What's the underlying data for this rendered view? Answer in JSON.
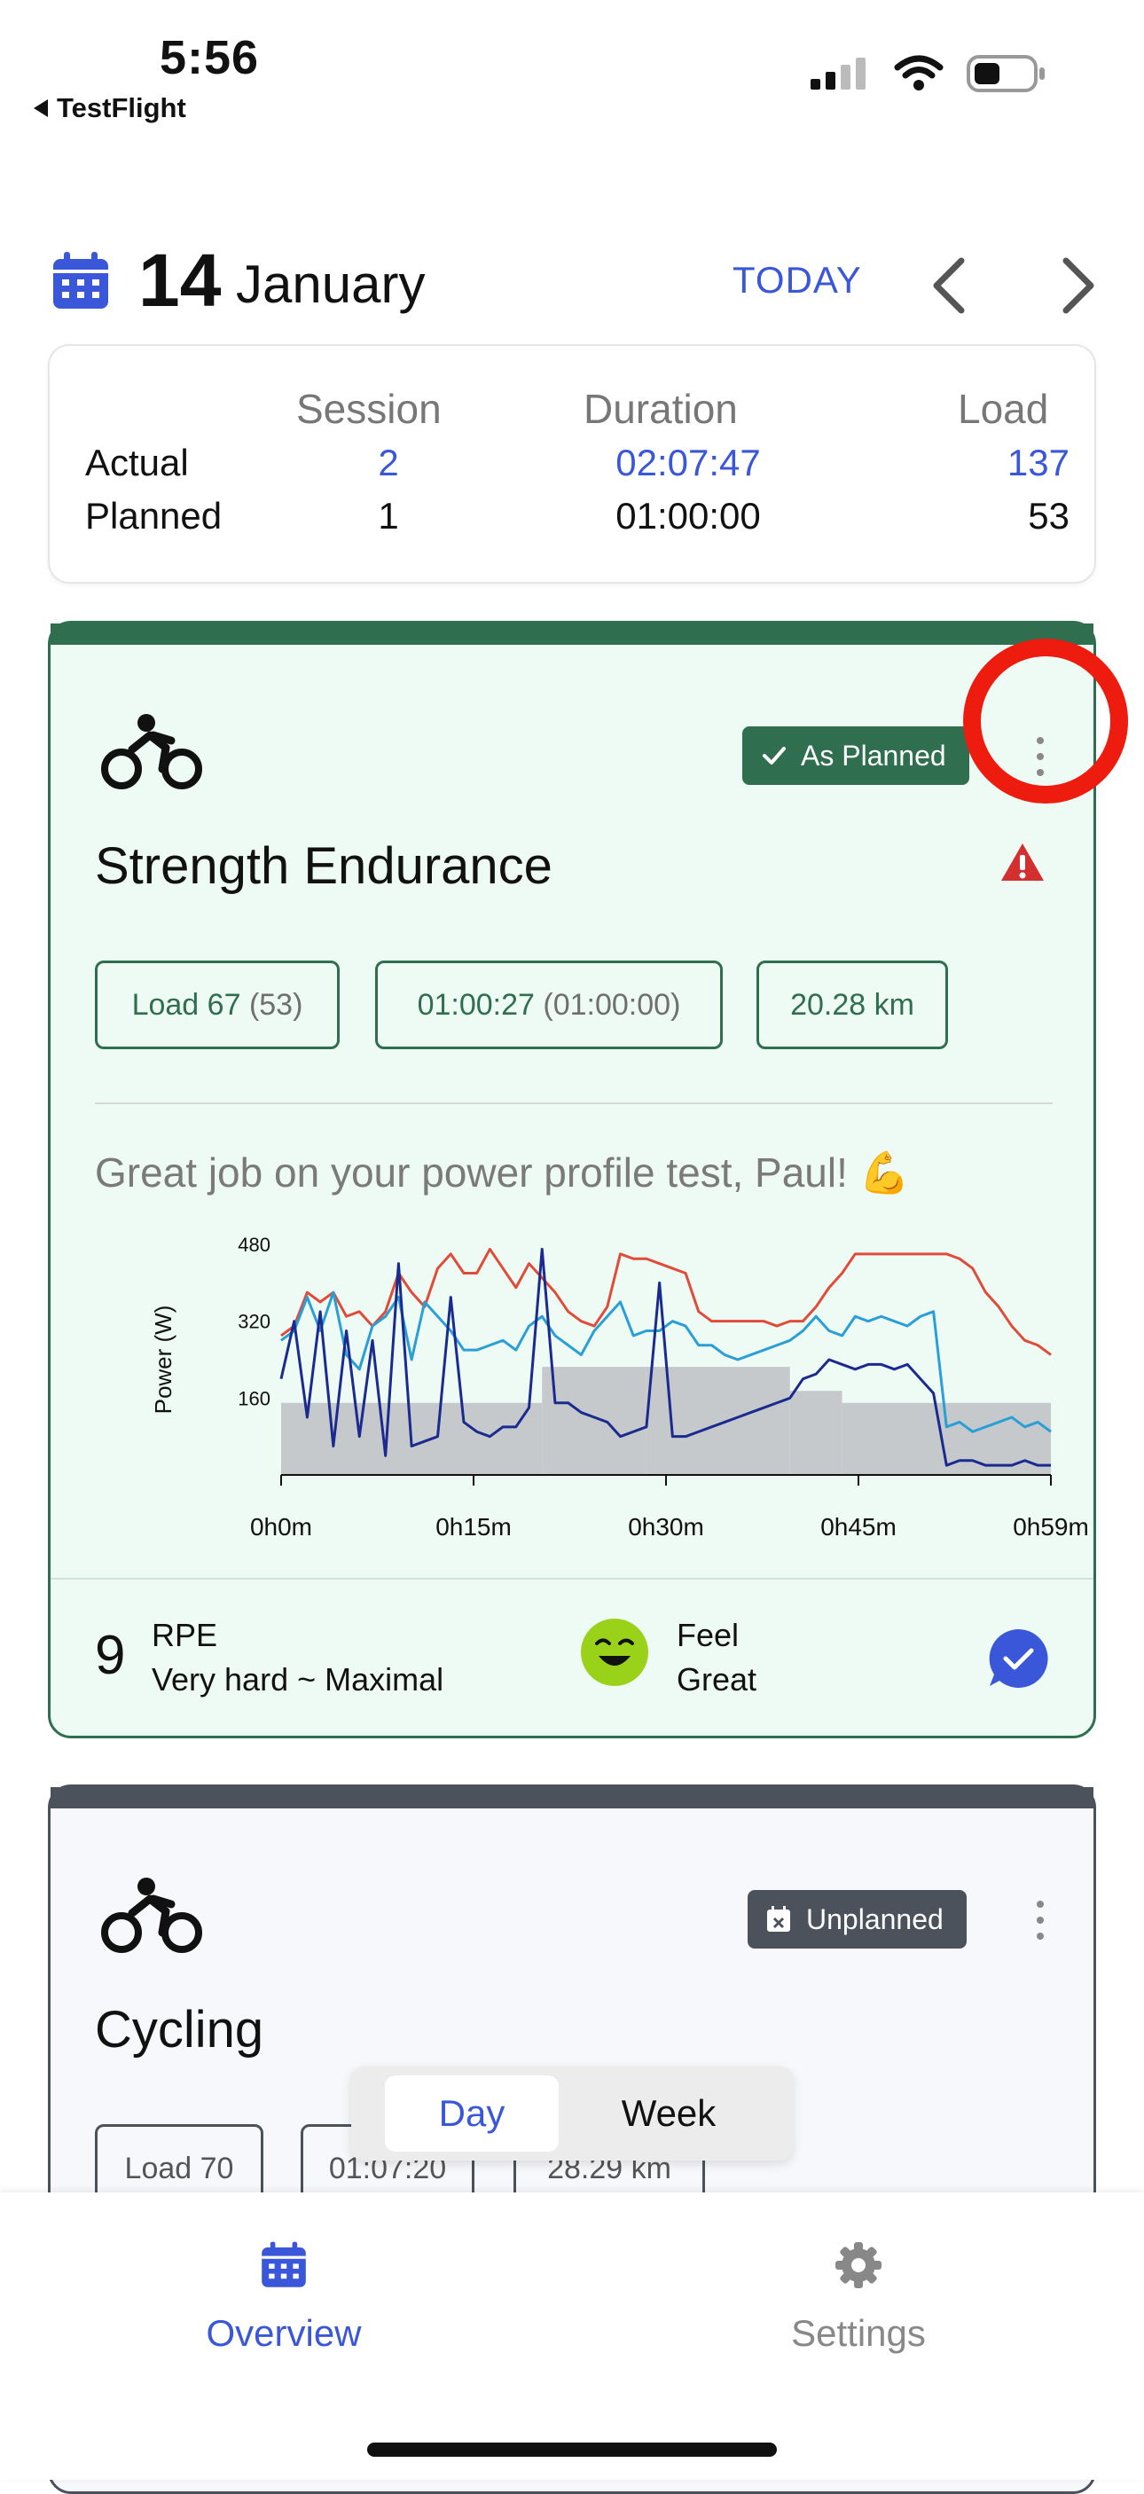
{
  "status_bar": {
    "time": "5:56",
    "back_app": "TestFlight"
  },
  "header": {
    "day": "14",
    "month": "January",
    "today_label": "TODAY"
  },
  "summary": {
    "columns": [
      "Session",
      "Duration",
      "Load"
    ],
    "actual": {
      "label": "Actual",
      "session": "2",
      "duration": "02:07:47",
      "load": "137"
    },
    "planned": {
      "label": "Planned",
      "session": "1",
      "duration": "01:00:00",
      "load": "53"
    }
  },
  "session1": {
    "badge": "As Planned",
    "title": "Strength Endurance",
    "chips": {
      "load": "Load 67",
      "load_planned": "(53)",
      "duration": "01:00:27",
      "duration_planned": "(01:00:00)",
      "distance": "20.28 km"
    },
    "message": "Great job on your power profile test, Paul! 💪",
    "rpe_value": "9",
    "rpe_label": "RPE",
    "rpe_desc": "Very hard ~ Maximal",
    "feel_label": "Feel",
    "feel_value": "Great"
  },
  "chart_data": {
    "type": "line",
    "title": "",
    "ylabel": "Power (W)",
    "xlabel": "",
    "y_ticks": [
      160,
      320,
      480
    ],
    "x_tick_labels": [
      "0h0m",
      "0h15m",
      "0h30m",
      "0h45m",
      "0h59m"
    ],
    "xlim": [
      0,
      59
    ],
    "ylim": [
      0,
      480
    ],
    "x": [
      0,
      1,
      2,
      3,
      4,
      5,
      6,
      7,
      8,
      9,
      10,
      11,
      12,
      13,
      14,
      15,
      16,
      17,
      18,
      19,
      20,
      21,
      22,
      23,
      24,
      25,
      26,
      27,
      28,
      29,
      30,
      31,
      32,
      33,
      34,
      35,
      36,
      37,
      38,
      39,
      40,
      41,
      42,
      43,
      44,
      45,
      46,
      47,
      48,
      49,
      50,
      51,
      52,
      53,
      54,
      55,
      56,
      57,
      58,
      59
    ],
    "planned_steps": [
      {
        "x0": 0,
        "x1": 20,
        "y": 150
      },
      {
        "x0": 20,
        "x1": 28,
        "y": 225
      },
      {
        "x0": 28,
        "x1": 39,
        "y": 225
      },
      {
        "x0": 39,
        "x1": 43,
        "y": 175
      },
      {
        "x0": 43,
        "x1": 59,
        "y": 150
      }
    ],
    "series": [
      {
        "color": "#e04b3a",
        "values": [
          290,
          310,
          380,
          360,
          380,
          330,
          340,
          310,
          340,
          420,
          380,
          350,
          430,
          460,
          420,
          420,
          470,
          430,
          390,
          440,
          410,
          380,
          340,
          320,
          310,
          350,
          460,
          450,
          450,
          440,
          430,
          420,
          340,
          320,
          320,
          320,
          320,
          320,
          310,
          320,
          320,
          350,
          390,
          420,
          460,
          460,
          460,
          460,
          460,
          460,
          460,
          460,
          450,
          430,
          380,
          350,
          310,
          280,
          270,
          250
        ]
      },
      {
        "color": "#2a9fd6",
        "values": [
          280,
          300,
          370,
          300,
          380,
          250,
          220,
          310,
          330,
          370,
          240,
          360,
          330,
          300,
          260,
          260,
          270,
          280,
          260,
          310,
          330,
          290,
          270,
          250,
          300,
          330,
          360,
          290,
          300,
          300,
          320,
          310,
          270,
          270,
          250,
          240,
          250,
          260,
          270,
          280,
          300,
          330,
          300,
          290,
          330,
          320,
          330,
          320,
          310,
          330,
          340,
          100,
          110,
          90,
          100,
          110,
          120,
          100,
          110,
          90
        ]
      },
      {
        "color": "#1a2a8f",
        "values": [
          200,
          320,
          120,
          340,
          60,
          300,
          80,
          280,
          40,
          440,
          60,
          70,
          80,
          370,
          110,
          90,
          80,
          100,
          100,
          140,
          470,
          150,
          150,
          130,
          120,
          110,
          80,
          90,
          100,
          400,
          80,
          80,
          90,
          100,
          110,
          120,
          130,
          140,
          150,
          160,
          200,
          210,
          240,
          230,
          220,
          230,
          230,
          220,
          230,
          200,
          170,
          20,
          30,
          30,
          20,
          20,
          20,
          30,
          20,
          20
        ]
      }
    ]
  },
  "session2": {
    "badge": "Unplanned",
    "title": "Cycling",
    "chips": {
      "load": "Load 70",
      "duration": "01:07:20",
      "distance": "28.29 km"
    }
  },
  "toggle": {
    "day": "Day",
    "week": "Week"
  },
  "tabbar": {
    "overview": "Overview",
    "settings": "Settings"
  },
  "colors": {
    "accent": "#3b57d9",
    "planned_green": "#2f6e4f",
    "unplanned_gray": "#4b525c",
    "highlight_red": "#ee1b0f",
    "warning_red": "#d32f2f"
  }
}
